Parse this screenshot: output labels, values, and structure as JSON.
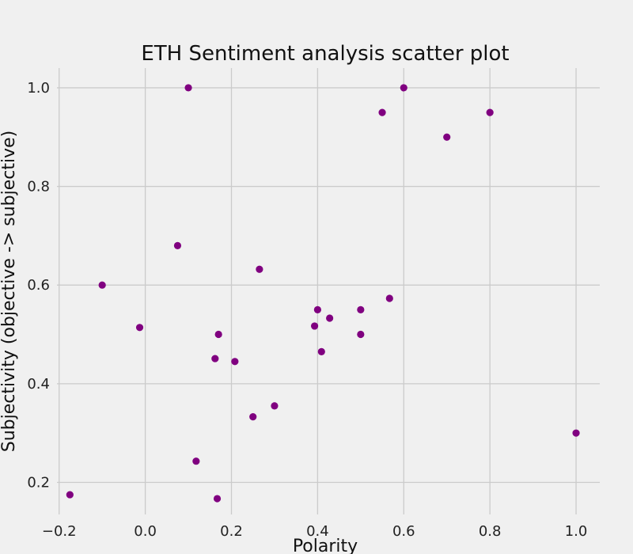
{
  "chart_data": {
    "type": "scatter",
    "title": "ETH Sentiment analysis scatter plot",
    "xlabel": "Polarity",
    "ylabel": "Subjectivity (objective -> subjective)",
    "xlim": [
      -0.205,
      1.055
    ],
    "ylim": [
      0.135,
      1.04
    ],
    "x_ticks": [
      -0.2,
      0.0,
      0.2,
      0.4,
      0.6,
      0.8,
      1.0
    ],
    "x_tick_labels": [
      "−0.2",
      "0.0",
      "0.2",
      "0.4",
      "0.6",
      "0.8",
      "1.0"
    ],
    "y_ticks": [
      0.2,
      0.4,
      0.6,
      0.8,
      1.0
    ],
    "y_tick_labels": [
      "0.2",
      "0.4",
      "0.6",
      "0.8",
      "1.0"
    ],
    "grid": true,
    "marker_color": "#800080",
    "background_color": "#f0f0f0",
    "grid_color": "#cbcbcb",
    "points": [
      {
        "x": 0.1,
        "y": 1.0
      },
      {
        "x": 0.6,
        "y": 1.0
      },
      {
        "x": 0.55,
        "y": 0.95
      },
      {
        "x": 0.8,
        "y": 0.95
      },
      {
        "x": 0.7,
        "y": 0.9
      },
      {
        "x": 0.075,
        "y": 0.68
      },
      {
        "x": 0.265,
        "y": 0.632
      },
      {
        "x": -0.1,
        "y": 0.6
      },
      {
        "x": 0.567,
        "y": 0.573
      },
      {
        "x": 0.4,
        "y": 0.55
      },
      {
        "x": 0.5,
        "y": 0.55
      },
      {
        "x": 0.428,
        "y": 0.533
      },
      {
        "x": 0.393,
        "y": 0.517
      },
      {
        "x": -0.013,
        "y": 0.514
      },
      {
        "x": 0.17,
        "y": 0.5
      },
      {
        "x": 0.5,
        "y": 0.5
      },
      {
        "x": 0.409,
        "y": 0.465
      },
      {
        "x": 0.162,
        "y": 0.451
      },
      {
        "x": 0.208,
        "y": 0.445
      },
      {
        "x": 0.3,
        "y": 0.355
      },
      {
        "x": 0.25,
        "y": 0.333
      },
      {
        "x": 1.0,
        "y": 0.3
      },
      {
        "x": 0.118,
        "y": 0.243
      },
      {
        "x": -0.175,
        "y": 0.175
      },
      {
        "x": 0.167,
        "y": 0.167
      }
    ]
  }
}
